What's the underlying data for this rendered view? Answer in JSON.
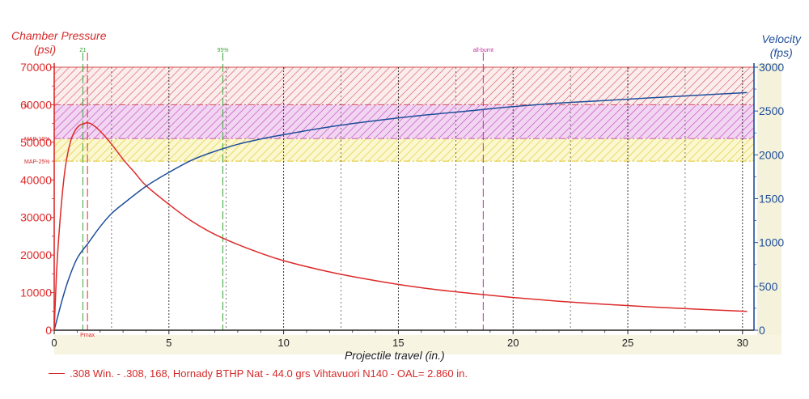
{
  "chart_data": {
    "type": "line",
    "xlabel": "Projectile travel (in.)",
    "ylabel_left": "Chamber Pressure",
    "ylabel_left_unit": "(psi)",
    "ylabel_right": "Velocity",
    "ylabel_right_unit": "(fps)",
    "xlim": [
      0,
      30.5
    ],
    "ylim_left": [
      0,
      70000
    ],
    "ylim_right": [
      0,
      3000
    ],
    "xticks": [
      0,
      5,
      10,
      15,
      20,
      25,
      30
    ],
    "yticks_left": [
      0,
      10000,
      20000,
      30000,
      40000,
      50000,
      60000,
      70000
    ],
    "yticks_right": [
      0,
      500,
      1000,
      1500,
      2000,
      2500,
      3000
    ],
    "grid": true,
    "colors": {
      "pressure": "#dd2a2a",
      "velocity": "#1f4e9a",
      "axis": "#222222",
      "z1": "#3aa63a",
      "pct95": "#3aa63a",
      "allburnt": "#c030a0"
    },
    "bands": [
      {
        "name": "MAP",
        "from": 60000,
        "to": 70000,
        "color": "#d85050"
      },
      {
        "name": "MAP-10%",
        "from": 51000,
        "to": 60000,
        "color": "#c040c0"
      },
      {
        "name": "MAP-25%",
        "from": 45000,
        "to": 51000,
        "color": "#e0c830"
      }
    ],
    "band_labels": [
      {
        "text": "M",
        "at": 60000
      },
      {
        "text": "MAP-10%",
        "at": 51000
      },
      {
        "text": "MAP-25%",
        "at": 45000
      }
    ],
    "markers": [
      {
        "label": "Z1",
        "x": 1.25,
        "color": "#3aa63a"
      },
      {
        "label": "Pmax",
        "x": 1.45,
        "color": "#dd2a2a",
        "label_position": "bottom"
      },
      {
        "label": "95%",
        "x": 7.35,
        "color": "#3aa63a"
      },
      {
        "label": "all-burnt",
        "x": 18.7,
        "color": "#c030a0"
      }
    ],
    "series": [
      {
        "name": "Chamber Pressure",
        "axis": "left",
        "x": [
          0,
          0.1,
          0.2,
          0.35,
          0.5,
          0.7,
          0.9,
          1.1,
          1.3,
          1.45,
          1.65,
          2.0,
          2.5,
          3,
          3.5,
          4,
          5,
          6,
          7,
          8,
          9,
          10,
          12,
          14,
          16,
          18,
          20,
          22,
          24,
          26,
          28,
          30.2
        ],
        "values": [
          0,
          15000,
          25000,
          36000,
          44000,
          50000,
          53000,
          54500,
          55000,
          55200,
          54800,
          53000,
          49500,
          45500,
          42000,
          38500,
          33500,
          29000,
          25500,
          22800,
          20500,
          18500,
          15500,
          13200,
          11300,
          9900,
          8700,
          7700,
          6900,
          6200,
          5600,
          5000
        ]
      },
      {
        "name": "Velocity",
        "axis": "right",
        "x": [
          0,
          0.3,
          0.6,
          1,
          1.5,
          2,
          2.5,
          3,
          4,
          5,
          6,
          7,
          8,
          9,
          10,
          12,
          14,
          16,
          18,
          20,
          22,
          24,
          26,
          28,
          30.2
        ],
        "values": [
          0,
          300,
          560,
          820,
          1000,
          1180,
          1330,
          1440,
          1640,
          1800,
          1940,
          2040,
          2120,
          2180,
          2230,
          2320,
          2390,
          2450,
          2500,
          2550,
          2590,
          2620,
          2650,
          2680,
          2710
        ]
      }
    ],
    "legend": ".308 Win. - .308, 168, Hornady BTHP Nat - 44.0 grs Vihtavuori N140 - OAL= 2.860 in."
  }
}
